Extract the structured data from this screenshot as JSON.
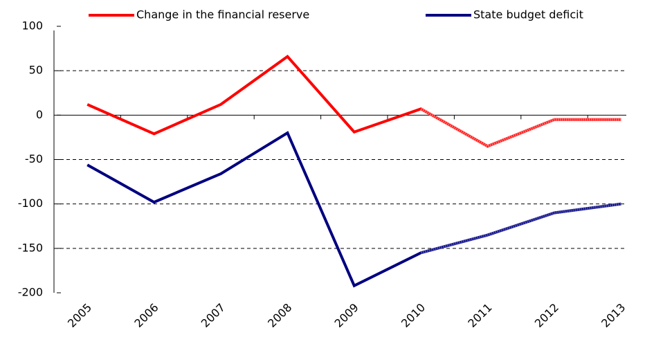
{
  "chart_data": {
    "type": "line",
    "categories": [
      "2005",
      "2006",
      "2007",
      "2008",
      "2009",
      "2010",
      "2011",
      "2012",
      "2013"
    ],
    "series": [
      {
        "name": "Change in the financial reserve",
        "color": "#ff0000",
        "projection_color": "#ff6666",
        "values": [
          12,
          -21,
          12,
          66,
          -19,
          7,
          -35,
          -5,
          -5
        ]
      },
      {
        "name": "State budget deficit",
        "color": "#000080",
        "projection_color": "#4a4aa6",
        "values": [
          -56,
          -98,
          -66,
          -20,
          -192,
          -155,
          -135,
          -110,
          -100
        ]
      }
    ],
    "projected_from": "2010",
    "ylim": [
      -200,
      100
    ],
    "yticks": [
      -200,
      -150,
      -100,
      -50,
      0,
      50,
      100
    ],
    "grid": true
  }
}
